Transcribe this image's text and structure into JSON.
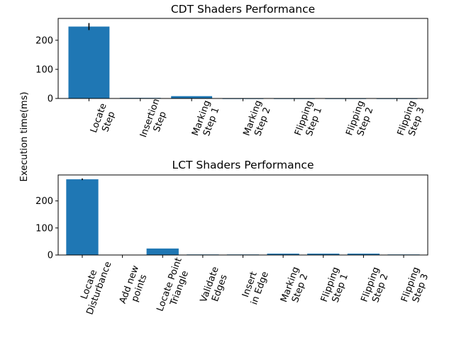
{
  "figure": {
    "ylabel": "Execution time(ms)"
  },
  "colors": {
    "bar": "#1f77b4",
    "errorbar": "#000000",
    "axis": "#000000"
  },
  "chart_data": [
    {
      "type": "bar",
      "title": "CDT Shaders Performance",
      "categories": [
        "Locate\nStep",
        "Insertion\nStep",
        "Marking\nStep 1",
        "Marking\nStep 2",
        "Flipping\nStep 1",
        "Flipping\nStep 2",
        "Flipping\nStep 3"
      ],
      "values": [
        247,
        2,
        8,
        1,
        1,
        1,
        1
      ],
      "errors": [
        12,
        0,
        0,
        0,
        0,
        0,
        0
      ],
      "ylim": [
        0,
        275
      ],
      "yticks": [
        0,
        100,
        200
      ],
      "grid": false
    },
    {
      "type": "bar",
      "title": "LCT Shaders Performance",
      "categories": [
        "Locate\nDisturbance",
        "Add new\npoints",
        "Locate Point\nTriangle",
        "Validate\nEdges",
        "Insert\nin Edge",
        "Marking\nStep 2",
        "Flipping\nStep 1",
        "Flipping\nStep 2",
        "Flipping\nStep 3"
      ],
      "values": [
        280,
        0,
        24,
        2,
        2,
        5,
        5,
        5,
        2
      ],
      "errors": [
        3,
        0,
        0,
        0,
        0,
        0,
        0,
        0,
        0
      ],
      "ylim": [
        0,
        296
      ],
      "yticks": [
        0,
        100,
        200
      ],
      "grid": false
    }
  ]
}
